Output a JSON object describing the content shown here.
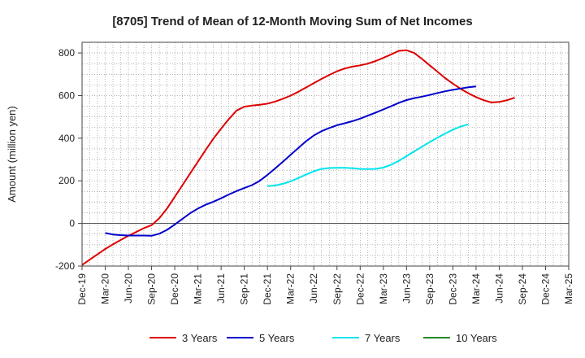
{
  "chart_data": {
    "type": "line",
    "title": "[8705]  Trend of Mean of 12-Month Moving Sum of Net Incomes",
    "ylabel": "Amount (million yen)",
    "xlabel": "",
    "ylim": [
      -200,
      850
    ],
    "yticks": [
      -200,
      0,
      200,
      400,
      600,
      800
    ],
    "x_tick_labels": [
      "Dec-19",
      "Mar-20",
      "Jun-20",
      "Sep-20",
      "Dec-20",
      "Mar-21",
      "Jun-21",
      "Sep-21",
      "Dec-21",
      "Mar-22",
      "Jun-22",
      "Sep-22",
      "Dec-22",
      "Mar-23",
      "Jun-23",
      "Sep-23",
      "Dec-23",
      "Mar-24",
      "Jun-24",
      "Sep-24",
      "Dec-24",
      "Mar-25"
    ],
    "grid": true,
    "legend_position": "bottom",
    "series": [
      {
        "name": "3 Years",
        "color": "#dd0000",
        "points": [
          [
            "Dec-19",
            -195
          ],
          [
            "Jan-20",
            -170
          ],
          [
            "Feb-20",
            -145
          ],
          [
            "Mar-20",
            -120
          ],
          [
            "Apr-20",
            -98
          ],
          [
            "May-20",
            -78
          ],
          [
            "Jun-20",
            -58
          ],
          [
            "Jul-20",
            -40
          ],
          [
            "Aug-20",
            -22
          ],
          [
            "Sep-20",
            -8
          ],
          [
            "Oct-20",
            25
          ],
          [
            "Nov-20",
            70
          ],
          [
            "Dec-20",
            125
          ],
          [
            "Jan-21",
            180
          ],
          [
            "Feb-21",
            235
          ],
          [
            "Mar-21",
            290
          ],
          [
            "Apr-21",
            345
          ],
          [
            "May-21",
            398
          ],
          [
            "Jun-21",
            445
          ],
          [
            "Jul-21",
            490
          ],
          [
            "Aug-21",
            530
          ],
          [
            "Sep-21",
            548
          ],
          [
            "Oct-21",
            553
          ],
          [
            "Nov-21",
            557
          ],
          [
            "Dec-21",
            562
          ],
          [
            "Jan-22",
            572
          ],
          [
            "Feb-22",
            585
          ],
          [
            "Mar-22",
            600
          ],
          [
            "Apr-22",
            618
          ],
          [
            "May-22",
            638
          ],
          [
            "Jun-22",
            658
          ],
          [
            "Jul-22",
            678
          ],
          [
            "Aug-22",
            697
          ],
          [
            "Sep-22",
            714
          ],
          [
            "Oct-22",
            727
          ],
          [
            "Nov-22",
            736
          ],
          [
            "Dec-22",
            742
          ],
          [
            "Jan-23",
            750
          ],
          [
            "Feb-23",
            762
          ],
          [
            "Mar-23",
            777
          ],
          [
            "Apr-23",
            793
          ],
          [
            "May-23",
            810
          ],
          [
            "Jun-23",
            813
          ],
          [
            "Jul-23",
            800
          ],
          [
            "Aug-23",
            772
          ],
          [
            "Sep-23",
            742
          ],
          [
            "Oct-23",
            712
          ],
          [
            "Nov-23",
            682
          ],
          [
            "Dec-23",
            656
          ],
          [
            "Jan-24",
            632
          ],
          [
            "Feb-24",
            611
          ],
          [
            "Mar-24",
            593
          ],
          [
            "Apr-24",
            578
          ],
          [
            "May-24",
            568
          ],
          [
            "Jun-24",
            570
          ],
          [
            "Jul-24",
            578
          ],
          [
            "Aug-24",
            590
          ]
        ]
      },
      {
        "name": "5 Years",
        "color": "#0000cc",
        "points": [
          [
            "Mar-20",
            -45
          ],
          [
            "Apr-20",
            -52
          ],
          [
            "May-20",
            -55
          ],
          [
            "Jun-20",
            -57
          ],
          [
            "Jul-20",
            -57
          ],
          [
            "Aug-20",
            -57
          ],
          [
            "Sep-20",
            -58
          ],
          [
            "Oct-20",
            -48
          ],
          [
            "Nov-20",
            -30
          ],
          [
            "Dec-20",
            -5
          ],
          [
            "Jan-21",
            22
          ],
          [
            "Feb-21",
            48
          ],
          [
            "Mar-21",
            70
          ],
          [
            "Apr-21",
            88
          ],
          [
            "May-21",
            102
          ],
          [
            "Jun-21",
            118
          ],
          [
            "Jul-21",
            136
          ],
          [
            "Aug-21",
            152
          ],
          [
            "Sep-21",
            166
          ],
          [
            "Oct-21",
            180
          ],
          [
            "Nov-21",
            200
          ],
          [
            "Dec-21",
            228
          ],
          [
            "Jan-22",
            258
          ],
          [
            "Feb-22",
            290
          ],
          [
            "Mar-22",
            322
          ],
          [
            "Apr-22",
            354
          ],
          [
            "May-22",
            386
          ],
          [
            "Jun-22",
            413
          ],
          [
            "Jul-22",
            433
          ],
          [
            "Aug-22",
            448
          ],
          [
            "Sep-22",
            461
          ],
          [
            "Oct-22",
            470
          ],
          [
            "Nov-22",
            480
          ],
          [
            "Dec-22",
            492
          ],
          [
            "Jan-23",
            506
          ],
          [
            "Feb-23",
            520
          ],
          [
            "Mar-23",
            535
          ],
          [
            "Apr-23",
            550
          ],
          [
            "May-23",
            566
          ],
          [
            "Jun-23",
            579
          ],
          [
            "Jul-23",
            588
          ],
          [
            "Aug-23",
            595
          ],
          [
            "Sep-23",
            603
          ],
          [
            "Oct-23",
            612
          ],
          [
            "Nov-23",
            620
          ],
          [
            "Dec-23",
            627
          ],
          [
            "Jan-24",
            633
          ],
          [
            "Feb-24",
            639
          ],
          [
            "Mar-24",
            643
          ]
        ]
      },
      {
        "name": "7 Years",
        "color": "#00e5ee",
        "points": [
          [
            "Dec-21",
            175
          ],
          [
            "Jan-22",
            178
          ],
          [
            "Feb-22",
            186
          ],
          [
            "Mar-22",
            198
          ],
          [
            "Apr-22",
            213
          ],
          [
            "May-22",
            229
          ],
          [
            "Jun-22",
            245
          ],
          [
            "Jul-22",
            256
          ],
          [
            "Aug-22",
            260
          ],
          [
            "Sep-22",
            261
          ],
          [
            "Oct-22",
            261
          ],
          [
            "Nov-22",
            259
          ],
          [
            "Dec-22",
            256
          ],
          [
            "Jan-23",
            255
          ],
          [
            "Feb-23",
            256
          ],
          [
            "Mar-23",
            262
          ],
          [
            "Apr-23",
            275
          ],
          [
            "May-23",
            294
          ],
          [
            "Jun-23",
            316
          ],
          [
            "Jul-23",
            338
          ],
          [
            "Aug-23",
            360
          ],
          [
            "Sep-23",
            382
          ],
          [
            "Oct-23",
            402
          ],
          [
            "Nov-23",
            422
          ],
          [
            "Dec-23",
            440
          ],
          [
            "Jan-24",
            455
          ],
          [
            "Feb-24",
            465
          ]
        ]
      },
      {
        "name": "10 Years",
        "color": "#228822",
        "points": []
      }
    ]
  }
}
